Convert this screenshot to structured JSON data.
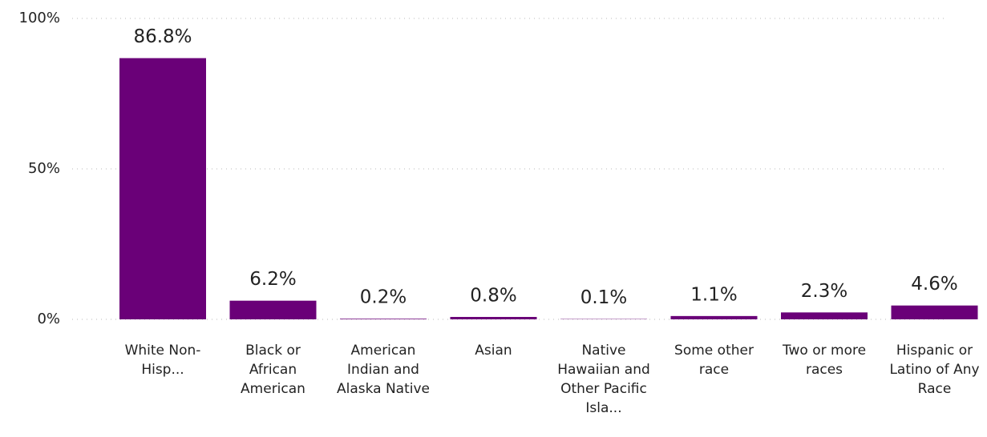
{
  "chart_data": {
    "type": "bar",
    "categories": [
      "White Non-Hisp...",
      "Black or African American",
      "American Indian and Alaska Native",
      "Asian",
      "Native Hawaiian and Other Pacific Isla...",
      "Some other race",
      "Two or more races",
      "Hispanic or Latino of Any Race"
    ],
    "values": [
      86.8,
      6.2,
      0.2,
      0.8,
      0.1,
      1.1,
      2.3,
      4.6
    ],
    "value_labels": [
      "86.8%",
      "6.2%",
      "0.2%",
      "0.8%",
      "0.1%",
      "1.1%",
      "2.3%",
      "4.6%"
    ],
    "color": "#6a0078",
    "ylim": [
      0,
      100
    ],
    "yticks": [
      {
        "value": 0,
        "label": "0%"
      },
      {
        "value": 50,
        "label": "50%"
      },
      {
        "value": 100,
        "label": "100%"
      }
    ],
    "grid": true
  }
}
